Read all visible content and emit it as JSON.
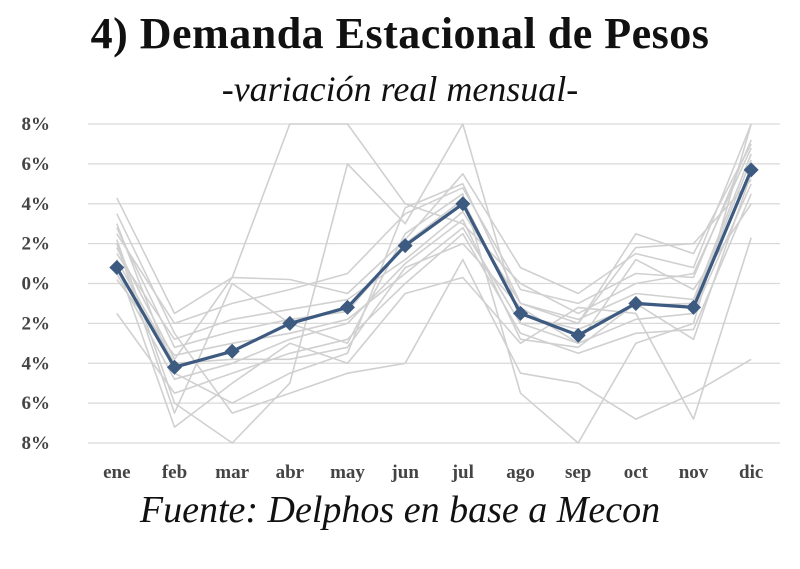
{
  "chart_data": {
    "type": "line",
    "title": "4)  Demanda Estacional de Pesos",
    "subtitle": "-variación real mensual-",
    "source": "Fuente:  Delphos en base a Mecon",
    "categories": [
      "ene",
      "feb",
      "mar",
      "abr",
      "may",
      "jun",
      "jul",
      "ago",
      "sep",
      "oct",
      "nov",
      "dic"
    ],
    "y_tick_labels": [
      "8%",
      "6%",
      "4%",
      "2%",
      "0%",
      "2%",
      "4%",
      "6%",
      "8%"
    ],
    "ylim": [
      -8,
      8
    ],
    "grid": true,
    "colors": {
      "highlight": "#3d5a80",
      "background_series": "#d0d0d0",
      "grid": "#d9d9d9"
    },
    "highlight_series": {
      "marker": "diamond",
      "values": [
        0.8,
        -4.2,
        -3.4,
        -2.0,
        -1.2,
        1.9,
        4.0,
        -1.5,
        -2.6,
        -1.0,
        -1.2,
        5.7
      ]
    },
    "background_series": [
      {
        "values": [
          4.3,
          -1.5,
          0.3,
          0.2,
          -0.5,
          2.2,
          5.5,
          0.8,
          -0.5,
          1.5,
          0.8,
          8.0
        ]
      },
      {
        "values": [
          2.5,
          -2.0,
          -1.0,
          -0.3,
          0.5,
          3.5,
          4.8,
          -0.3,
          -1.0,
          0.5,
          0.3,
          7.2
        ]
      },
      {
        "values": [
          1.5,
          -2.8,
          -1.8,
          -1.3,
          -0.8,
          1.2,
          3.6,
          -1.0,
          -1.8,
          -0.5,
          -0.8,
          6.5
        ]
      },
      {
        "values": [
          0.2,
          -3.6,
          -3.0,
          -2.5,
          -1.8,
          0.5,
          2.8,
          -2.0,
          -3.0,
          -1.8,
          -1.5,
          5.0
        ]
      },
      {
        "values": [
          -1.5,
          -5.5,
          -4.5,
          -3.5,
          -2.8,
          0.0,
          2.5,
          -2.5,
          -3.5,
          -2.5,
          -2.3,
          4.5
        ]
      },
      {
        "values": [
          2.0,
          -6.5,
          0.0,
          -2.0,
          -3.0,
          2.5,
          4.5,
          -5.5,
          -8.0,
          -3.0,
          -2.0,
          8.0
        ]
      },
      {
        "values": [
          3.0,
          -4.5,
          -6.0,
          -4.5,
          -3.5,
          3.8,
          5.0,
          -1.0,
          -2.0,
          2.5,
          1.5,
          7.0
        ]
      },
      {
        "values": [
          1.0,
          -7.2,
          -5.0,
          -3.0,
          -4.0,
          -0.5,
          0.3,
          -3.0,
          -1.2,
          -1.5,
          -6.8,
          2.3
        ]
      },
      {
        "values": [
          2.8,
          -3.2,
          -2.4,
          -1.8,
          -1.4,
          2.0,
          4.2,
          -1.6,
          -2.3,
          -1.1,
          -1.0,
          6.2
        ]
      },
      {
        "values": [
          0.5,
          -4.8,
          -4.0,
          -2.8,
          -2.0,
          1.0,
          3.2,
          -2.8,
          -3.2,
          -1.0,
          -2.8,
          5.5
        ]
      },
      {
        "values": [
          3.5,
          -2.5,
          -6.5,
          -5.5,
          -4.5,
          -4.0,
          1.2,
          -4.5,
          -5.0,
          -6.8,
          -5.5,
          -3.8
        ]
      },
      {
        "values": [
          1.8,
          -3.8,
          0.3,
          8.0,
          8.0,
          4.0,
          3.0,
          0.0,
          -1.5,
          0.0,
          0.5,
          6.8
        ]
      },
      {
        "values": [
          2.2,
          -6.0,
          -8.0,
          -5.0,
          6.0,
          3.0,
          8.0,
          -2.0,
          -2.0,
          1.8,
          2.0,
          5.2
        ]
      },
      {
        "values": [
          1.2,
          -4.0,
          -3.8,
          -3.8,
          -3.2,
          0.8,
          2.0,
          -1.2,
          -3.0,
          1.2,
          -0.3,
          4.0
        ]
      }
    ]
  }
}
